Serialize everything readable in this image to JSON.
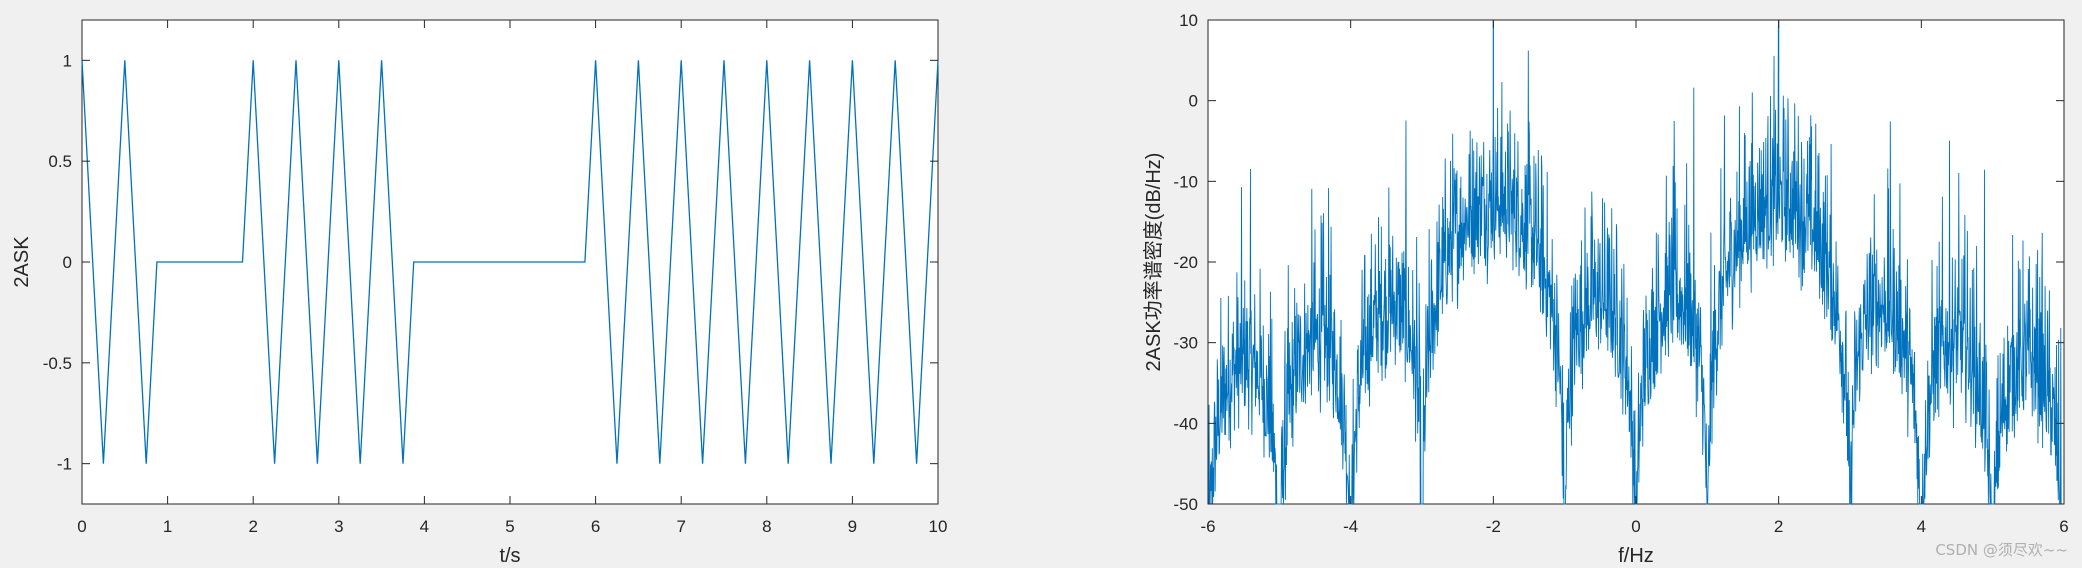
{
  "chart_data": [
    {
      "type": "line",
      "title": "",
      "xlabel": "t/s",
      "ylabel": "2ASK",
      "xlim": [
        0,
        10
      ],
      "ylim": [
        -1.2,
        1.2
      ],
      "xticks": [
        0,
        1,
        2,
        3,
        4,
        5,
        6,
        7,
        8,
        9,
        10
      ],
      "yticks": [
        -1,
        -0.5,
        0,
        0.5,
        1
      ],
      "ytick_labels": [
        "-1",
        "-0.5",
        "0",
        "0.5",
        "1"
      ],
      "grid": false,
      "bits": [
        1,
        0,
        1,
        1,
        0,
        0,
        1,
        1,
        1,
        1
      ],
      "bit_duration": 1,
      "carrier_frequency": 2,
      "samples_per_second": 8,
      "series": [
        {
          "color": "#0072BD"
        }
      ]
    },
    {
      "type": "line",
      "title": "",
      "xlabel": "f/Hz",
      "ylabel": "2ASK功率谱密度(dB/Hz)",
      "xlim": [
        -6,
        6
      ],
      "ylim": [
        -50,
        10
      ],
      "xticks": [
        -6,
        -4,
        -2,
        0,
        2,
        4,
        6
      ],
      "yticks": [
        -50,
        -40,
        -30,
        -20,
        -10,
        0,
        10
      ],
      "grid": false,
      "carrier_peaks": [
        {
          "f": -2,
          "db": 10
        },
        {
          "f": 2,
          "db": 10
        }
      ],
      "main_lobe_peak_db": -5,
      "series": [
        {
          "color": "#0072BD"
        }
      ]
    }
  ],
  "watermark": "CSDN @须尽欢~~"
}
